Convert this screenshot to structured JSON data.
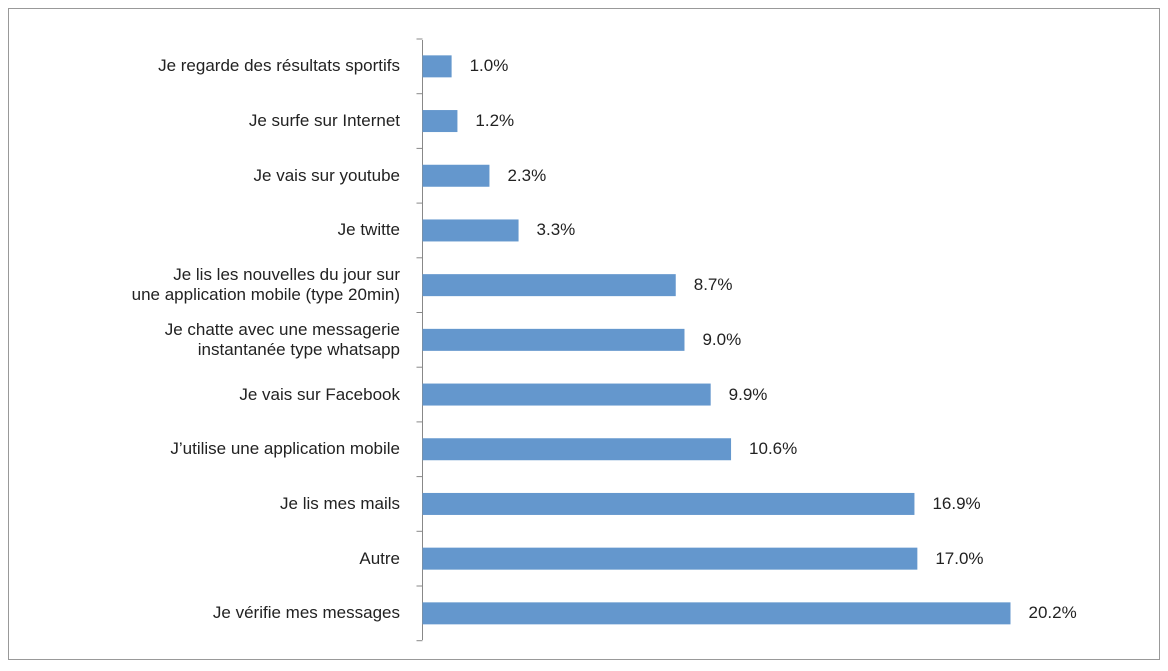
{
  "chart_data": {
    "type": "barh",
    "categories": [
      "Je regarde des résultats sportifs",
      "Je surfe sur Internet",
      "Je vais sur youtube",
      "Je twitte",
      "Je lis les nouvelles du jour sur\nune application mobile (type 20min)",
      "Je chatte avec une messagerie\ninstantanée type whatsapp",
      "Je vais sur Facebook",
      "J’utilise une application mobile",
      "Je lis mes mails",
      "Autre",
      "Je vérifie mes messages"
    ],
    "values": [
      1.0,
      1.2,
      2.3,
      3.3,
      8.7,
      9.0,
      9.9,
      10.6,
      16.9,
      17.0,
      20.2
    ],
    "value_labels": [
      "1.0%",
      "1.2%",
      "2.3%",
      "3.3%",
      "8.7%",
      "9.0%",
      "9.9%",
      "10.6%",
      "16.9%",
      "17.0%",
      "20.2%"
    ],
    "color": "#6497cd"
  }
}
